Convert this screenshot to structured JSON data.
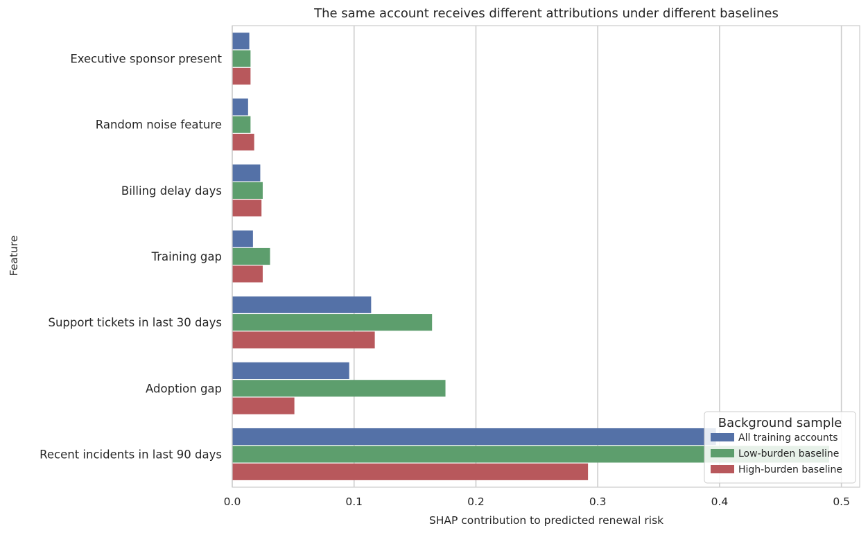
{
  "chart_data": {
    "type": "bar",
    "orientation": "horizontal",
    "title": "The same account receives different attributions under different baselines",
    "xlabel": "SHAP contribution to predicted renewal risk",
    "ylabel": "Feature",
    "categories": [
      "Executive sponsor present",
      "Random noise feature",
      "Billing delay days",
      "Training gap",
      "Support tickets in last 30 days",
      "Adoption gap",
      "Recent incidents in last 90 days"
    ],
    "series": [
      {
        "name": "All training accounts",
        "color": "#5471a7",
        "values": [
          0.014,
          0.013,
          0.023,
          0.017,
          0.114,
          0.096,
          0.397
        ]
      },
      {
        "name": "Low-burden baseline",
        "color": "#5d9e6d",
        "values": [
          0.015,
          0.015,
          0.025,
          0.031,
          0.164,
          0.175,
          0.49
        ]
      },
      {
        "name": "High-burden baseline",
        "color": "#b8585c",
        "values": [
          0.015,
          0.018,
          0.024,
          0.025,
          0.117,
          0.051,
          0.292
        ]
      }
    ],
    "xlim": [
      0,
      0.515
    ],
    "xticks": [
      0.0,
      0.1,
      0.2,
      0.3,
      0.4,
      0.5
    ],
    "xtick_labels": [
      "0.0",
      "0.1",
      "0.2",
      "0.3",
      "0.4",
      "0.5"
    ],
    "grid": "vertical",
    "legend": {
      "title": "Background sample",
      "placement": "lower-right"
    }
  }
}
